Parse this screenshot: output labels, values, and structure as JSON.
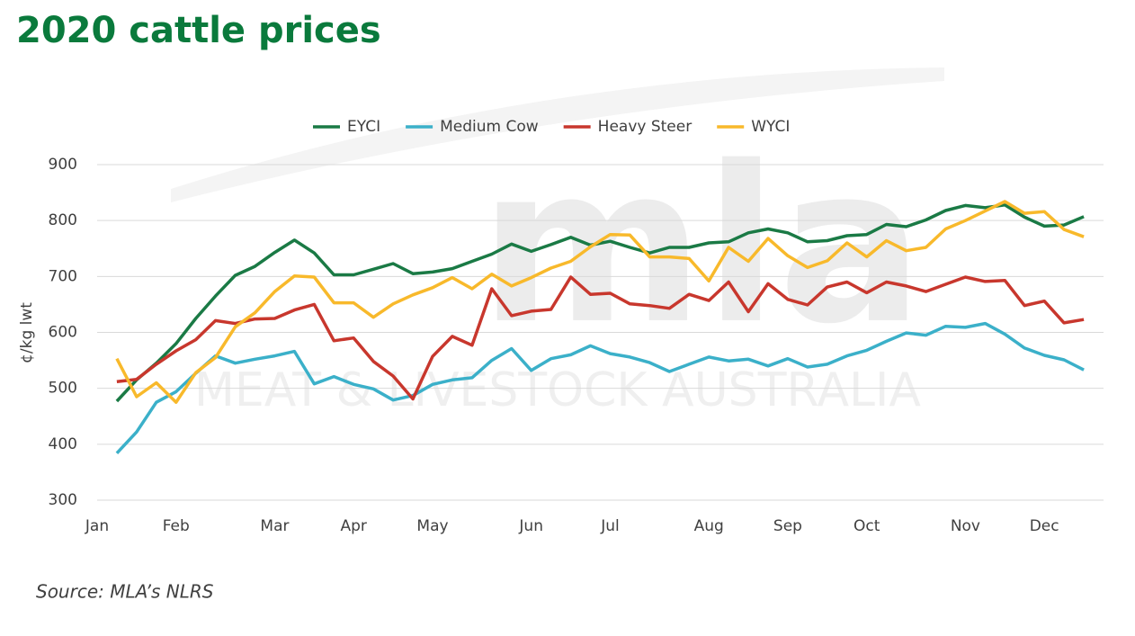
{
  "chart_data": {
    "type": "line",
    "title": "2020 cattle prices",
    "y_label": "¢/kg lwt",
    "source": "Source: MLA’s NLRS",
    "watermark": [
      "mla",
      "MEAT & LIVESTOCK AUSTRALIA"
    ],
    "categories": [
      "Jan",
      null,
      null,
      null,
      "Feb",
      null,
      null,
      null,
      null,
      "Mar",
      null,
      null,
      null,
      "Apr",
      null,
      null,
      null,
      "May",
      null,
      null,
      null,
      null,
      "Jun",
      null,
      null,
      null,
      "Jul",
      null,
      null,
      null,
      null,
      "Aug",
      null,
      null,
      null,
      "Sep",
      null,
      null,
      null,
      "Oct",
      null,
      null,
      null,
      null,
      "Nov",
      null,
      null,
      null,
      "Dec",
      null,
      null,
      null
    ],
    "ylim": [
      300,
      900
    ],
    "yticks": [
      300,
      400,
      500,
      600,
      700,
      800,
      900
    ],
    "grid": true,
    "legend": "top",
    "series": [
      {
        "name": "EYCI",
        "color": "#1a7a45",
        "values": [
          null,
          477,
          515,
          545,
          580,
          625,
          665,
          702,
          718,
          743,
          765,
          742,
          703,
          703,
          713,
          723,
          705,
          708,
          714,
          727,
          740,
          758,
          745,
          757,
          770,
          756,
          763,
          752,
          742,
          752,
          752,
          760,
          762,
          778,
          785,
          778,
          762,
          764,
          773,
          775,
          793,
          789,
          801,
          818,
          827,
          823,
          828,
          806,
          790,
          792,
          807,
          null
        ]
      },
      {
        "name": "Medium Cow",
        "color": "#3bb0c9",
        "values": [
          null,
          384,
          422,
          475,
          494,
          527,
          558,
          545,
          552,
          558,
          566,
          508,
          521,
          507,
          499,
          479,
          487,
          507,
          515,
          519,
          550,
          571,
          532,
          553,
          560,
          576,
          562,
          556,
          546,
          530,
          543,
          556,
          549,
          552,
          540,
          553,
          538,
          543,
          558,
          568,
          584,
          599,
          595,
          611,
          609,
          616,
          597,
          572,
          559,
          551,
          533,
          null
        ]
      },
      {
        "name": "Heavy Steer",
        "color": "#c8372d",
        "values": [
          null,
          512,
          516,
          543,
          567,
          587,
          621,
          616,
          624,
          625,
          640,
          650,
          585,
          590,
          548,
          522,
          481,
          557,
          593,
          577,
          678,
          630,
          638,
          641,
          699,
          668,
          670,
          651,
          648,
          643,
          668,
          657,
          690,
          637,
          687,
          659,
          649,
          681,
          690,
          671,
          690,
          683,
          673,
          686,
          699,
          691,
          693,
          648,
          656,
          617,
          623,
          null
        ]
      },
      {
        "name": "WYCI",
        "color": "#f8b92b",
        "values": [
          null,
          553,
          485,
          510,
          475,
          528,
          555,
          610,
          635,
          673,
          701,
          699,
          653,
          653,
          627,
          651,
          667,
          680,
          698,
          678,
          704,
          683,
          698,
          715,
          727,
          753,
          775,
          774,
          735,
          735,
          732,
          692,
          752,
          727,
          768,
          737,
          716,
          728,
          760,
          735,
          764,
          746,
          752,
          785,
          800,
          817,
          834,
          813,
          816,
          784,
          771,
          null
        ]
      }
    ]
  }
}
